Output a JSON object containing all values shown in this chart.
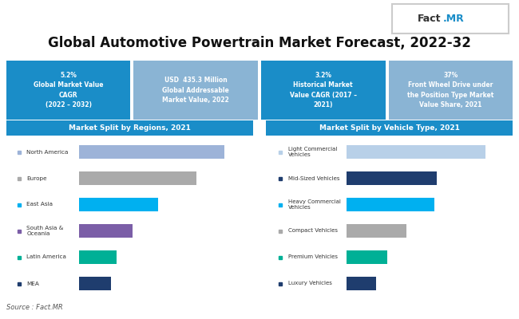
{
  "title": "Global Automotive Powertrain Market Forecast, 2022-32",
  "bg_color": "#ffffff",
  "stat_boxes": [
    {
      "text": "5.2%\nGlobal Market Value\nCAGR\n(2022 – 2032)",
      "color": "#1a8dc8"
    },
    {
      "text": "USD  435.3 Million\nGlobal Addressable\nMarket Value, 2022",
      "color": "#8ab4d4"
    },
    {
      "text": "3.2%\nHistorical Market\nValue CAGR (2017 –\n2021)",
      "color": "#1a8dc8"
    },
    {
      "text": "37%\nFront Wheel Drive under\nthe Position Type Market\nValue Share, 2021",
      "color": "#8ab4d4"
    }
  ],
  "region_chart": {
    "title": "Market Split by Regions, 2021",
    "title_bg": "#1a8dc8",
    "categories": [
      "North America",
      "Europe",
      "East Asia",
      "South Asia &\nOceania",
      "Latin America",
      "MEA"
    ],
    "values": [
      92,
      74,
      50,
      34,
      24,
      20
    ],
    "colors": [
      "#9db3d8",
      "#aaaaaa",
      "#00b0f0",
      "#7b5ea7",
      "#00b096",
      "#1f3d6e"
    ]
  },
  "vehicle_chart": {
    "title": "Market Split by Vehicle Type, 2021",
    "title_bg": "#1a8dc8",
    "categories": [
      "Light Commercial\nVehicles",
      "Mid-Sized Vehicles",
      "Heavy Commercial\nVehicles",
      "Compact Vehicles",
      "Premium Vehicles",
      "Luxury Vehicles"
    ],
    "values": [
      92,
      60,
      58,
      40,
      27,
      20
    ],
    "colors": [
      "#b8d0e8",
      "#1f3d6e",
      "#00b0f0",
      "#aaaaaa",
      "#00b096",
      "#1f3d6e"
    ]
  },
  "source_text": "Source : Fact.MR",
  "logo_fact_color": "#333333",
  "logo_mr_color": "#1a8dc8",
  "logo_bg": "#ffffff",
  "logo_border": "#cccccc"
}
